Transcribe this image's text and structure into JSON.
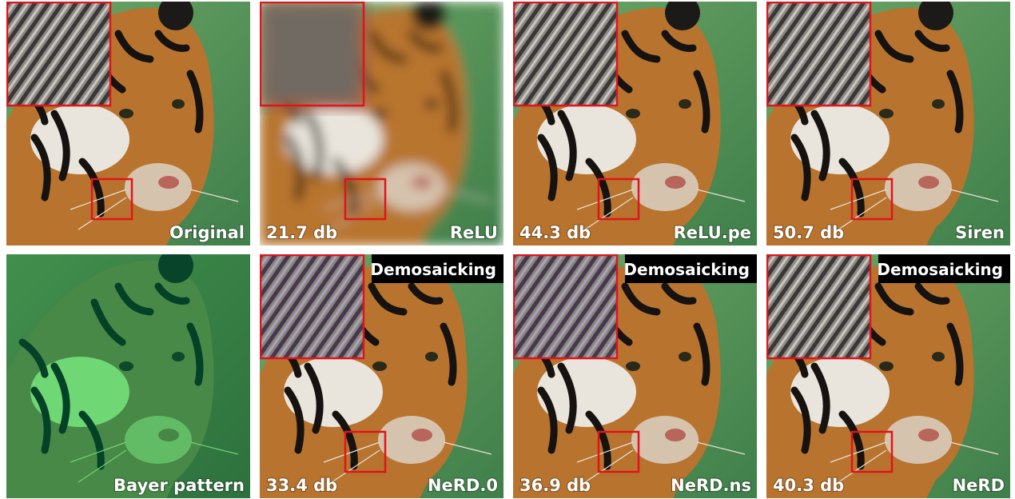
{
  "rows": [
    [
      {
        "label": "Original"
      },
      {
        "score": "21.7 db",
        "label": "ReLU"
      },
      {
        "score": "44.3 db",
        "label": "ReLU.pe"
      },
      {
        "score": "50.7 db",
        "label": "Siren"
      }
    ],
    [
      {
        "label": "Bayer pattern"
      },
      {
        "badge": "Demosaicking",
        "score": "33.4 db",
        "label": "NeRD.0"
      },
      {
        "badge": "Demosaicking",
        "score": "36.9 db",
        "label": "NeRD.ns"
      },
      {
        "badge": "Demosaicking",
        "score": "40.3 db",
        "label": "NeRD"
      }
    ]
  ]
}
